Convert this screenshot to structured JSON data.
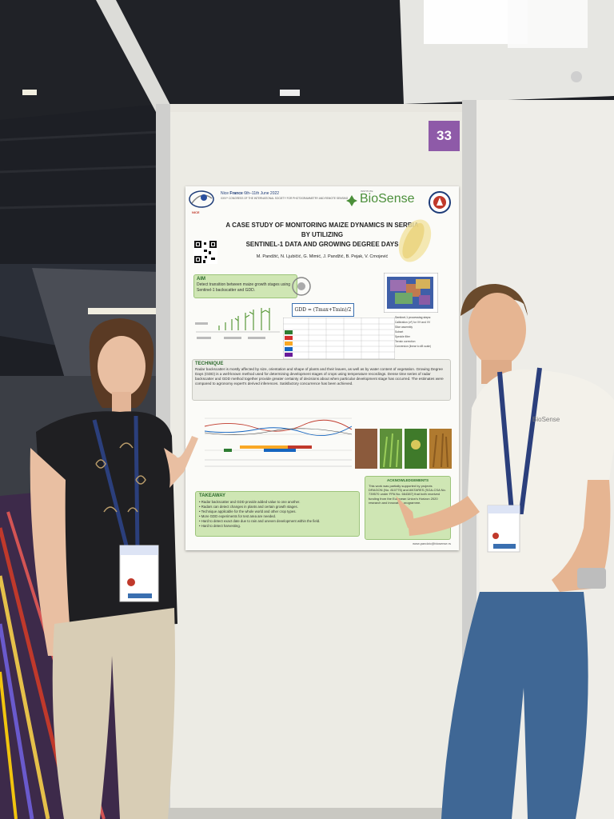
{
  "booth_number": "33",
  "poster": {
    "conference_place_prefix": "Nice",
    "conference_country": "France",
    "conference_dates": "6th–11th June 2022",
    "conference_line": "XXIVᵗʰ CONGRESS OF THE INTERNATIONAL SOCIETY FOR PHOTOGRAMMETRY AND REMOTE SENSING",
    "conference_logo_city": "NICE",
    "institute_label": "INSTITUTE",
    "institute_name": "BioSense",
    "title_line1": "A CASE STUDY OF MONITORING MAIZE DYNAMICS IN SERBIA",
    "title_line2": "BY UTILIZING",
    "title_line3": "SENTINEL-1 DATA AND GROWING DEGREE DAYS",
    "authors": "M. Pandžić, N. Ljubičić, G. Mimić, J. Pandžić, B. Pejak, V. Crnojević",
    "aim": {
      "heading": "AIM",
      "text": "Detect transition between maize growth stages using Sentinel-1 backscatter and GDD."
    },
    "technique": {
      "heading": "TECHNIQUE",
      "text": "Radar backscatter is mostly affected by size, orientation and shape of plants and their leaves, as well as by water content of vegetation. Growing Degree Days (GDD) is a well-known method used for determining development stages of crops using temperature recordings. Dense time series of radar backscatter and GDD method together provide greater certainty of decisions about when particular development stage has occurred. The estimates were compared to agronomy expert's derived inferences. Satisfactory concurrence has been achieved."
    },
    "takeaway": {
      "heading": "TAKEAWAY",
      "items": [
        "Radar backscatter and GDD provide added value to one another.",
        "Radars can detect changes in plants and certain growth stages.",
        "Technique applicable for the whole world and other crop types.",
        "More GDD experiments for test area are needed.",
        "Hard to detect exact date due to rain and uneven development within the field.",
        "Hard to detect harvesting."
      ]
    },
    "acknowledgements": {
      "heading": "ACKNOWLEDGEMENTS",
      "text": "This work was partially supported by projects DRAGON (No. 810775) and ANTARES (SGA-CSA No. 739570 under FPA No. 664387) that both received funding from the European Union's Horizon 2020 research and innovation programme."
    },
    "email": "www.pandzic@biosense.rs",
    "sentinel_steps_heading": "Sentinel-1 processing steps:",
    "sentinel_steps": [
      "Calibration (σ⁰) for VH and VV",
      "Slice assembly",
      "Subset",
      "Speckle filter",
      "Terrain correction",
      "Conversion (linear to dB scale)"
    ]
  },
  "lanyard_text": "BioSense",
  "shirt_logo": "BioSense",
  "colors": {
    "booth_badge": "#8e5aa8",
    "panel": "#eceae2",
    "poster_green": "#cfe6b4",
    "lanyard": "#2b3f7c"
  }
}
